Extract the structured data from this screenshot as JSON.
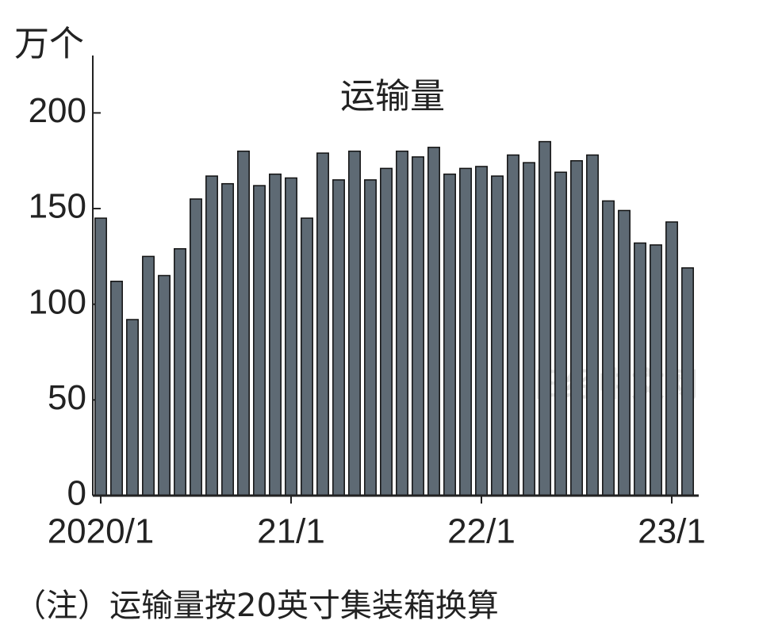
{
  "chart_data": {
    "type": "bar",
    "title": "运输量",
    "y_axis_label": "万个",
    "note": "（注）运输量按20英寸集装箱换算",
    "watermark": "日经中文网",
    "categories": [
      "2020/1",
      null,
      null,
      null,
      null,
      null,
      null,
      null,
      null,
      null,
      null,
      null,
      "21/1",
      null,
      null,
      null,
      null,
      null,
      null,
      null,
      null,
      null,
      null,
      null,
      "22/1",
      null,
      null,
      null,
      null,
      null,
      null,
      null,
      null,
      null,
      null,
      null,
      "23/1",
      null
    ],
    "values": [
      145,
      112,
      92,
      125,
      115,
      129,
      155,
      167,
      163,
      180,
      162,
      168,
      166,
      145,
      179,
      165,
      180,
      165,
      171,
      180,
      177,
      182,
      168,
      171,
      172,
      167,
      178,
      174,
      185,
      169,
      175,
      178,
      154,
      149,
      132,
      131,
      143,
      119
    ],
    "color": "#5e6a74",
    "ylim": [
      0,
      230
    ],
    "yticks": [
      0,
      50,
      100,
      150,
      200
    ]
  }
}
